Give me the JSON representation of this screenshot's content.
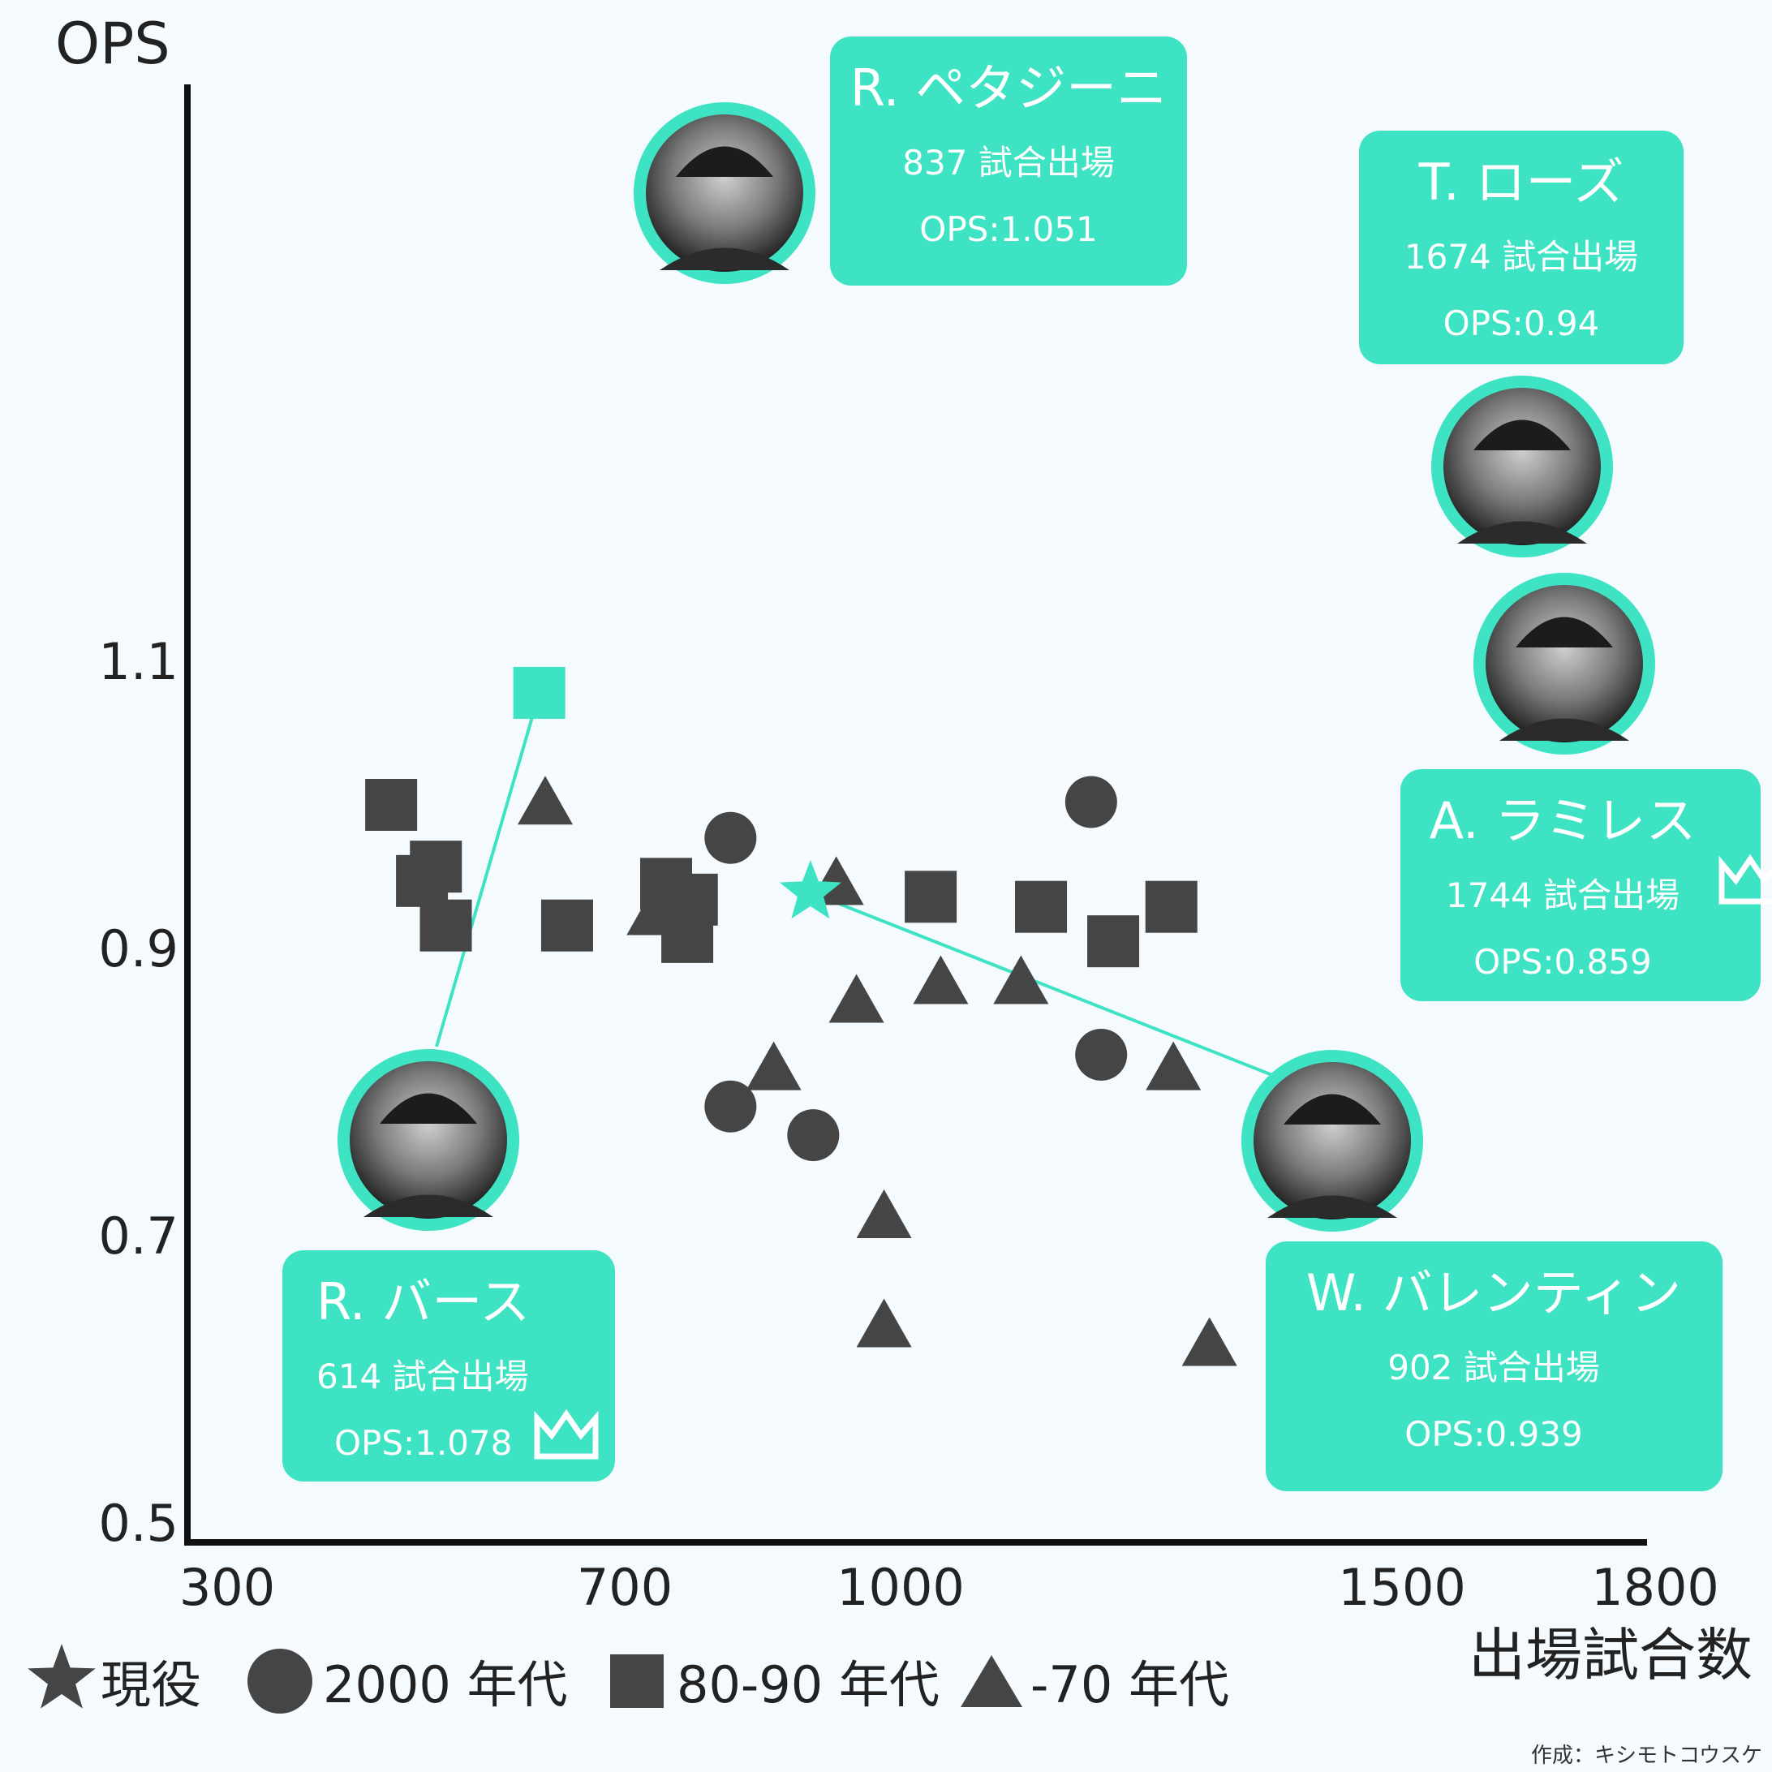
{
  "chart_data": {
    "type": "scatter",
    "ylabel": "OPS",
    "xlabel": "出場試合数",
    "x_ticks": [
      300,
      700,
      1000,
      1500,
      1800
    ],
    "y_ticks": [
      0.5,
      0.7,
      0.9,
      1.1
    ],
    "y_tick_labels": [
      "0.5",
      "0.7",
      "0.9",
      "1.1"
    ],
    "xlim": [
      300,
      1800
    ],
    "ylim": [
      0.5,
      1.1
    ],
    "colors": {
      "highlight": "#3de3c3",
      "marker": "#454545",
      "axis": "#111111"
    },
    "legend": [
      {
        "shape": "star",
        "label": "現役"
      },
      {
        "shape": "circle",
        "label": "2000 年代"
      },
      {
        "shape": "square",
        "label": "80-90 年代"
      },
      {
        "shape": "triangle",
        "label": "-70 年代"
      }
    ],
    "series": [
      {
        "shape": "circle",
        "points": [
          [
            815,
            0.977
          ],
          [
            1190,
            1.002
          ],
          [
            1200,
            0.826
          ],
          [
            815,
            0.79
          ],
          [
            905,
            0.77
          ]
        ]
      },
      {
        "shape": "square",
        "points": [
          [
            465,
            1.0
          ],
          [
            510,
            0.957
          ],
          [
            496,
            0.947
          ],
          [
            520,
            0.916
          ],
          [
            642,
            0.916
          ],
          [
            745,
            0.945
          ],
          [
            773,
            0.934
          ],
          [
            768,
            0.908
          ],
          [
            1030,
            0.936
          ],
          [
            1140,
            0.929
          ],
          [
            1270,
            0.929
          ],
          [
            1212,
            0.905
          ]
        ]
      },
      {
        "shape": "triangle",
        "points": [
          [
            620,
            1.001
          ],
          [
            732,
            0.924
          ],
          [
            930,
            0.945
          ],
          [
            952,
            0.863
          ],
          [
            1040,
            0.876
          ],
          [
            1120,
            0.876
          ],
          [
            862,
            0.816
          ],
          [
            982,
            0.713
          ],
          [
            1272,
            0.816
          ],
          [
            982,
            0.637
          ],
          [
            1308,
            0.624
          ]
        ]
      },
      {
        "shape": "square",
        "highlight": true,
        "points": [
          [
            614,
            1.078
          ]
        ]
      },
      {
        "shape": "star",
        "highlight": true,
        "points": [
          [
            902,
            0.939
          ]
        ]
      }
    ],
    "callouts": [
      {
        "name": "R. ペタジーニ",
        "games": "837 試合出場",
        "ops": "OPS:1.051",
        "crown": false
      },
      {
        "name": "T. ローズ",
        "games": "1674 試合出場",
        "ops": "OPS:0.94",
        "crown": false
      },
      {
        "name": "A. ラミレス",
        "games": "1744 試合出場",
        "ops": "OPS:0.859",
        "crown": true
      },
      {
        "name": "R. バース",
        "games": "614 試合出場",
        "ops": "OPS:1.078",
        "crown": true
      },
      {
        "name": "W. バレンティン",
        "games": "902 試合出場",
        "ops": "OPS:0.939",
        "crown": false
      }
    ],
    "credit": "作成：キシモトコウスケ"
  }
}
